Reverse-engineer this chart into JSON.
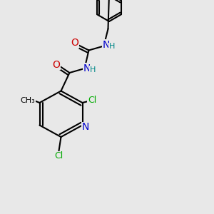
{
  "background_color": "#e8e8e8",
  "bond_color": "#000000",
  "line_width": 1.5,
  "atom_colors": {
    "C": "#000000",
    "N": "#0000cc",
    "O": "#cc0000",
    "Cl": "#00aa00",
    "H": "#008888"
  },
  "font_size": 9
}
